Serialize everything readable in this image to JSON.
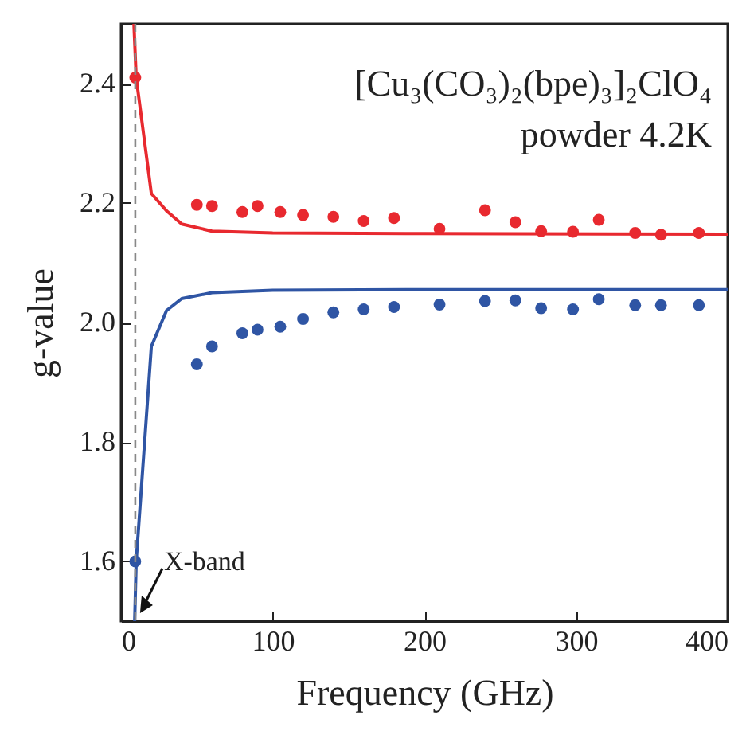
{
  "chart_data": {
    "type": "scatter",
    "title": "[Cu₃(CO₃)₂(bpe)₃]₂ClO₄",
    "subtitle": "powder 4.2K",
    "xlabel": "Frequency (GHz)",
    "ylabel": "g-value",
    "xlim": [
      0,
      400
    ],
    "xticks": [
      0,
      100,
      200,
      300,
      400
    ],
    "ylim": [
      1.5,
      2.5
    ],
    "yticks": [
      1.6,
      1.8,
      {
        "value": 2,
        "label": "2.0"
      },
      2.2,
      2.4
    ],
    "grid": false,
    "marker": "circle",
    "ref_lines": [
      {
        "axis": "x",
        "value": 9.4,
        "label": null,
        "color": "#888888",
        "line_style": "dashed"
      }
    ],
    "annotations": [
      {
        "text": "X-band",
        "x": 9.4,
        "y": 1.5
      }
    ],
    "series": [
      {
        "type": "line",
        "marker": "none",
        "color": "#e8292f",
        "x": [
          8.5,
          10,
          20,
          30,
          40,
          60,
          100,
          200,
          400
        ],
        "values": [
          2.5,
          2.41,
          2.216,
          2.187,
          2.165,
          2.153,
          2.15,
          2.149,
          2.148
        ]
      },
      {
        "type": "line",
        "marker": "none",
        "color": "#2f55a4",
        "x": [
          9,
          10,
          20,
          30,
          40,
          60,
          100,
          200,
          400
        ],
        "values": [
          1.5,
          1.6,
          1.96,
          2.02,
          2.04,
          2.05,
          2.054,
          2.055,
          2.055
        ]
      },
      {
        "color": "#e8292f",
        "x": [
          9.4,
          50,
          60,
          80,
          90,
          105,
          120,
          140,
          160,
          180,
          210,
          240,
          260,
          277,
          298,
          315,
          339,
          356,
          381
        ],
        "values": [
          2.41,
          2.197,
          2.195,
          2.185,
          2.195,
          2.185,
          2.18,
          2.177,
          2.17,
          2.175,
          2.157,
          2.188,
          2.168,
          2.153,
          2.152,
          2.172,
          2.15,
          2.147,
          2.15
        ]
      },
      {
        "color": "#2f55a4",
        "x": [
          9.4,
          50,
          60,
          80,
          90,
          105,
          120,
          140,
          160,
          180,
          210,
          240,
          260,
          277,
          298,
          315,
          339,
          356,
          381
        ],
        "values": [
          1.6,
          1.93,
          1.96,
          1.982,
          1.988,
          1.993,
          2.006,
          2.017,
          2.022,
          2.026,
          2.03,
          2.036,
          2.037,
          2.024,
          2.022,
          2.039,
          2.029,
          2.029,
          2.029
        ]
      }
    ]
  }
}
